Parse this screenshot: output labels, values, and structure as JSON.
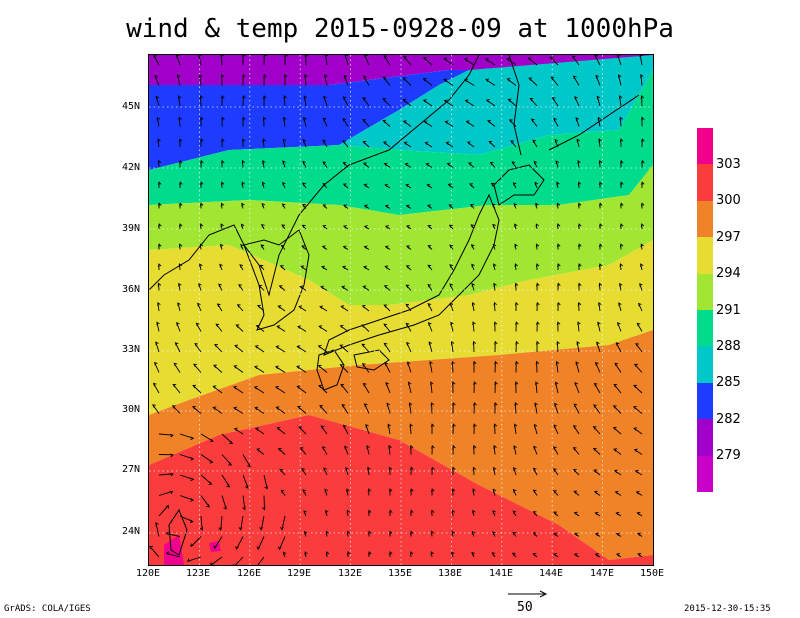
{
  "title": "wind & temp 2015-0928-09 at 1000hPa",
  "lat_labels": [
    "45N",
    "42N",
    "39N",
    "36N",
    "33N",
    "30N",
    "27N",
    "24N"
  ],
  "lon_labels": [
    "120E",
    "123E",
    "126E",
    "129E",
    "132E",
    "135E",
    "138E",
    "141E",
    "144E",
    "147E",
    "150E"
  ],
  "colorbar": {
    "labels": [
      "303",
      "300",
      "297",
      "294",
      "291",
      "288",
      "285",
      "282",
      "279"
    ],
    "colors": [
      "#f0008c",
      "#fa3c3c",
      "#f08228",
      "#e6dc32",
      "#a0e632",
      "#00dc8c",
      "#00c8c8",
      "#1e3cff",
      "#a000c8",
      "#c800c8"
    ]
  },
  "footer": {
    "left": "GrADS: COLA/IGES",
    "right": "2015-12-30-15:35"
  },
  "reference_vector": {
    "label": "50"
  },
  "map_data": {
    "region": {
      "lon_range": [
        120,
        150
      ],
      "lat_range": [
        22.5,
        48.5
      ]
    },
    "grid": "dotted 3-degree graticule",
    "field": "temperature (K), shaded",
    "vectors": "wind at 1000hPa"
  }
}
